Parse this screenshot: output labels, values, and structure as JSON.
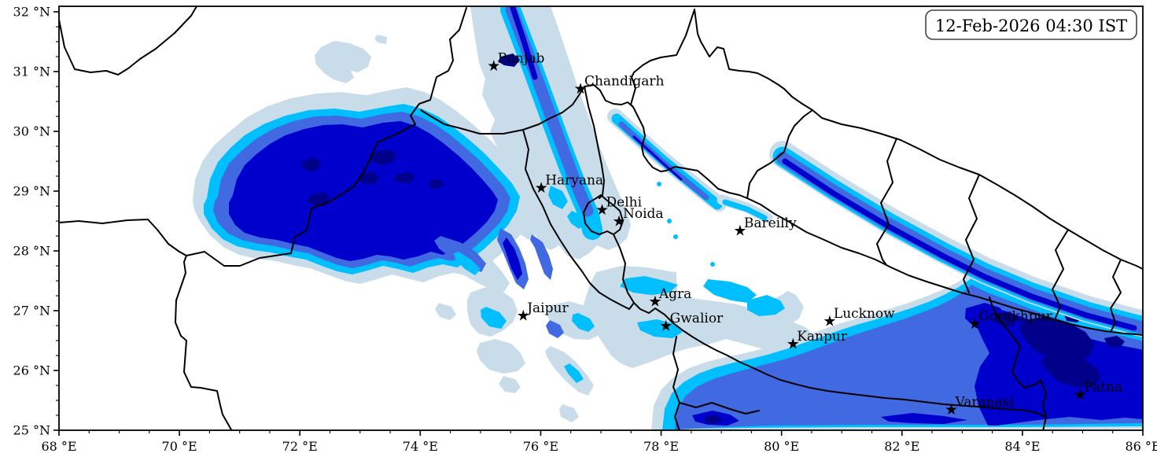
{
  "figure": {
    "timestamp_label": "12-Feb-2026 04:30 IST",
    "colors": {
      "background": "#ffffff",
      "frame": "#000000",
      "borders": "#000000",
      "levels": [
        "#c8dde9",
        "#00bfff",
        "#4169e1",
        "#0000cd",
        "#00008b"
      ]
    },
    "axes": {
      "lon_min": 68,
      "lon_max": 86,
      "lat_min": 25,
      "lat_max": 32,
      "x_minor_step": 0.5,
      "y_minor_step": 0.25,
      "x_ticks": [
        {
          "lon": 68,
          "label": "68 °E"
        },
        {
          "lon": 70,
          "label": "70 °E"
        },
        {
          "lon": 72,
          "label": "72 °E"
        },
        {
          "lon": 74,
          "label": "74 °E"
        },
        {
          "lon": 76,
          "label": "76 °E"
        },
        {
          "lon": 78,
          "label": "78 °E"
        },
        {
          "lon": 80,
          "label": "80 °E"
        },
        {
          "lon": 82,
          "label": "82 °E"
        },
        {
          "lon": 84,
          "label": "84 °E"
        },
        {
          "lon": 86,
          "label": "86 °E"
        }
      ],
      "y_ticks": [
        {
          "lat": 25,
          "label": "25 °N"
        },
        {
          "lat": 26,
          "label": "26 °N"
        },
        {
          "lat": 27,
          "label": "27 °N"
        },
        {
          "lat": 28,
          "label": "28 °N"
        },
        {
          "lat": 29,
          "label": "29 °N"
        },
        {
          "lat": 30,
          "label": "30 °N"
        },
        {
          "lat": 31,
          "label": "31 °N"
        },
        {
          "lat": 32,
          "label": "32 °N"
        }
      ]
    },
    "cities": [
      {
        "name": "Punjab",
        "lon": 75.22,
        "lat": 31.1
      },
      {
        "name": "Chandigarh",
        "lon": 76.66,
        "lat": 30.72
      },
      {
        "name": "Haryana",
        "lon": 76.01,
        "lat": 29.06
      },
      {
        "name": "Delhi",
        "lon": 77.02,
        "lat": 28.69
      },
      {
        "name": "Noida",
        "lon": 77.3,
        "lat": 28.5
      },
      {
        "name": "Bareilly",
        "lon": 79.31,
        "lat": 28.34
      },
      {
        "name": "Agra",
        "lon": 77.9,
        "lat": 27.16
      },
      {
        "name": "Jaipur",
        "lon": 75.71,
        "lat": 26.92
      },
      {
        "name": "Gwalior",
        "lon": 78.08,
        "lat": 26.75
      },
      {
        "name": "Lucknow",
        "lon": 80.8,
        "lat": 26.83
      },
      {
        "name": "Kanpur",
        "lon": 80.19,
        "lat": 26.45
      },
      {
        "name": "Gorakhpur",
        "lon": 83.21,
        "lat": 26.78
      },
      {
        "name": "Varanasi",
        "lon": 82.82,
        "lat": 25.35
      },
      {
        "name": "Patna",
        "lon": 84.96,
        "lat": 25.6
      }
    ]
  }
}
